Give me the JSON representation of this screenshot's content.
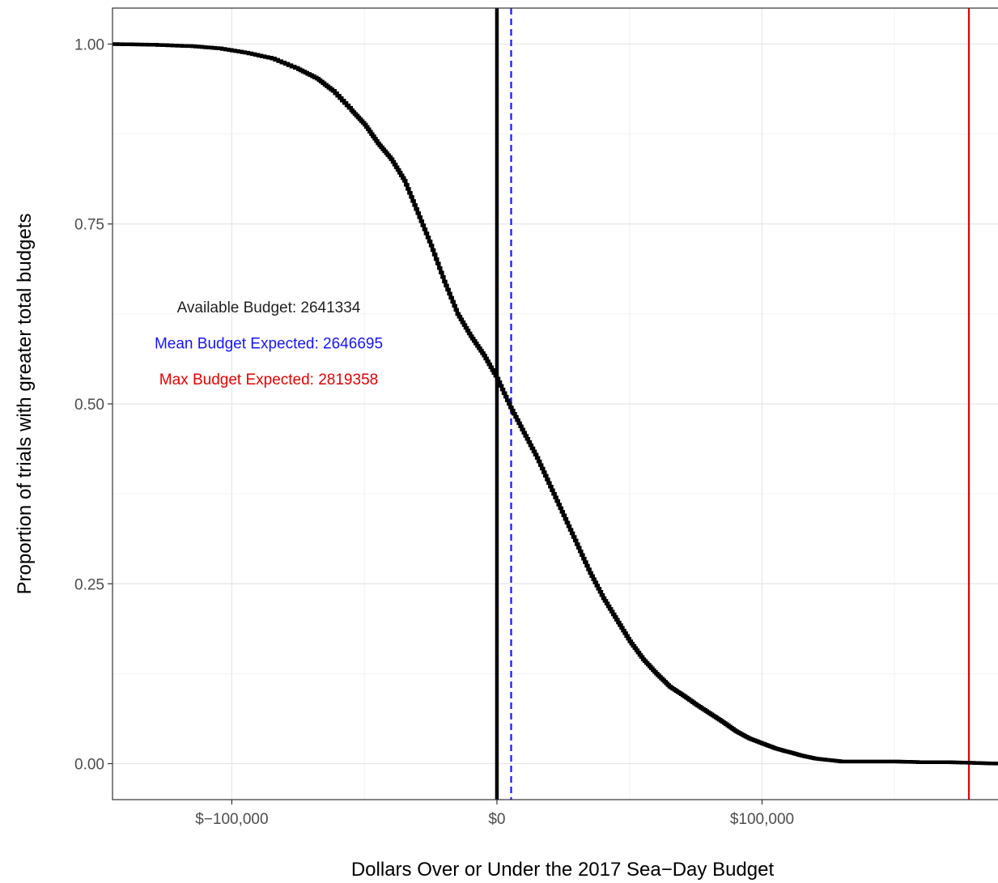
{
  "chart_data": {
    "type": "line",
    "title": "",
    "xlabel": "Dollars Over or Under the 2017 Sea−Day Budget",
    "ylabel": "Proportion of trials with greater total budgets",
    "xlim": [
      -145000,
      189000
    ],
    "ylim": [
      -0.05,
      1.05
    ],
    "x_ticks": [
      -100000,
      0,
      100000
    ],
    "x_tick_labels": [
      "$−100,000",
      "$0",
      "$100,000"
    ],
    "y_ticks": [
      0,
      0.25,
      0.5,
      0.75,
      1
    ],
    "y_tick_labels": [
      "0.00",
      "0.25",
      "0.50",
      "0.75",
      "1.00"
    ],
    "grid": true,
    "series": [
      {
        "type": "step",
        "color": "#000000",
        "x": [
          -145000,
          -130000,
          -115000,
          -105000,
          -95000,
          -85000,
          -75000,
          -68000,
          -62000,
          -55000,
          -50000,
          -45000,
          -40000,
          -35000,
          -30000,
          -25000,
          -20000,
          -15000,
          -10000,
          -5000,
          0,
          5000,
          10000,
          15000,
          20000,
          25000,
          30000,
          35000,
          40000,
          45000,
          50000,
          55000,
          60000,
          65000,
          70000,
          75000,
          80000,
          85000,
          90000,
          95000,
          100000,
          105000,
          110000,
          115000,
          120000,
          125000,
          130000,
          140000,
          150000,
          160000,
          170000,
          180000,
          189000
        ],
        "y": [
          1.0,
          0.999,
          0.997,
          0.994,
          0.988,
          0.98,
          0.965,
          0.952,
          0.935,
          0.908,
          0.888,
          0.862,
          0.84,
          0.81,
          0.765,
          0.72,
          0.67,
          0.625,
          0.594,
          0.567,
          0.535,
          0.495,
          0.46,
          0.425,
          0.385,
          0.345,
          0.305,
          0.265,
          0.23,
          0.2,
          0.17,
          0.145,
          0.125,
          0.107,
          0.095,
          0.082,
          0.07,
          0.058,
          0.045,
          0.035,
          0.028,
          0.021,
          0.016,
          0.011,
          0.007,
          0.005,
          0.003,
          0.003,
          0.003,
          0.002,
          0.002,
          0.001,
          0.0
        ]
      }
    ],
    "vlines": [
      {
        "x": 0,
        "color": "#000000",
        "style": "solid"
      },
      {
        "x": 5361,
        "color": "#1515ff",
        "style": "dashed"
      },
      {
        "x": 178024,
        "color": "#e60000",
        "style": "solid"
      }
    ],
    "annotations": [
      {
        "text": "Available Budget: 2641334",
        "color": "#222222"
      },
      {
        "text": "Mean Budget Expected: 2646695",
        "color": "#1515ff"
      },
      {
        "text": "Max Budget Expected: 2819358",
        "color": "#e60000"
      }
    ]
  }
}
